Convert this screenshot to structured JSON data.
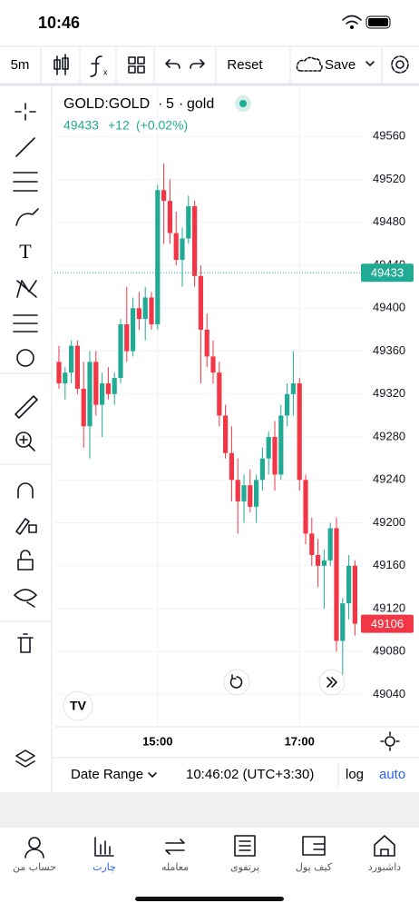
{
  "status_bar": {
    "time": "10:46"
  },
  "toolbar": {
    "interval": "5m",
    "reset": "Reset",
    "save": "Save"
  },
  "chart_data": {
    "type": "candlestick",
    "symbol": "GOLD:GOLD",
    "interval": "5",
    "exchange": "gold",
    "reference_price": 49433,
    "change": "+12",
    "change_pct": "(+0.02%)",
    "up_color": "#22ab94",
    "down_color": "#f23645",
    "categories": [
      null,
      null,
      null,
      null,
      null,
      null,
      null,
      null,
      null,
      null,
      null,
      null,
      null,
      null,
      null,
      null,
      "15:00",
      null,
      null,
      null,
      null,
      null,
      null,
      null,
      null,
      null,
      null,
      null,
      null,
      null,
      null,
      null,
      null,
      null,
      null,
      null,
      null,
      null,
      null,
      "17:00",
      null,
      null,
      null,
      null,
      null,
      null,
      null,
      null,
      null
    ],
    "open": [
      49350,
      49330,
      49340,
      49365,
      49325,
      49290,
      49350,
      49310,
      49330,
      49320,
      49335,
      49385,
      49360,
      49400,
      49390,
      49410,
      49385,
      49510,
      49500,
      49470,
      49445,
      49465,
      49495,
      49430,
      49380,
      49355,
      49340,
      49300,
      49265,
      49240,
      49220,
      49235,
      49215,
      49240,
      49260,
      49280,
      49245,
      49300,
      49320,
      49330,
      49240,
      49190,
      49170,
      49160,
      49165,
      49195,
      49090,
      49125,
      49160
    ],
    "high": [
      49365,
      49345,
      49370,
      49370,
      49350,
      49360,
      49360,
      49340,
      49345,
      49340,
      49390,
      49420,
      49410,
      49415,
      49420,
      49415,
      49515,
      49535,
      49520,
      49490,
      49475,
      49505,
      49500,
      49440,
      49395,
      49370,
      49350,
      49310,
      49290,
      49260,
      49245,
      49250,
      49245,
      49270,
      49285,
      49295,
      49310,
      49330,
      49360,
      49335,
      49245,
      49205,
      49185,
      49175,
      49200,
      49205,
      49130,
      49170,
      49165
    ],
    "low": [
      49325,
      49315,
      49330,
      49320,
      49270,
      49260,
      49300,
      49280,
      49315,
      49310,
      49330,
      49350,
      49355,
      49380,
      49370,
      49380,
      49380,
      49460,
      49460,
      49440,
      49420,
      49460,
      49420,
      49330,
      49345,
      49330,
      49290,
      49260,
      49220,
      49190,
      49200,
      49210,
      49200,
      49230,
      49245,
      49230,
      49240,
      49290,
      49300,
      49230,
      49180,
      49160,
      49140,
      49120,
      49160,
      49080,
      49055,
      49110,
      49095
    ],
    "close": [
      49330,
      49340,
      49365,
      49325,
      49290,
      49350,
      49310,
      49330,
      49320,
      49335,
      49385,
      49360,
      49400,
      49390,
      49410,
      49385,
      49510,
      49500,
      49470,
      49445,
      49465,
      49495,
      49430,
      49380,
      49355,
      49340,
      49300,
      49265,
      49240,
      49220,
      49235,
      49215,
      49240,
      49260,
      49280,
      49245,
      49300,
      49320,
      49330,
      49240,
      49190,
      49170,
      49160,
      49165,
      49195,
      49090,
      49125,
      49160,
      49106
    ],
    "ylim": [
      49010,
      49600
    ],
    "yticks": [
      49040,
      49080,
      49120,
      49160,
      49200,
      49240,
      49280,
      49320,
      49360,
      49400,
      49440,
      49480,
      49520,
      49560
    ],
    "grid": true
  },
  "bottom_bar": {
    "date_range": "Date Range",
    "clock": "10:46:02 (UTC+3:30)",
    "log": "log",
    "auto": "auto"
  },
  "nav": [
    "حساب من",
    "چارت",
    "معامله",
    "پرتفوی",
    "کیف پول",
    "داشبورد"
  ]
}
